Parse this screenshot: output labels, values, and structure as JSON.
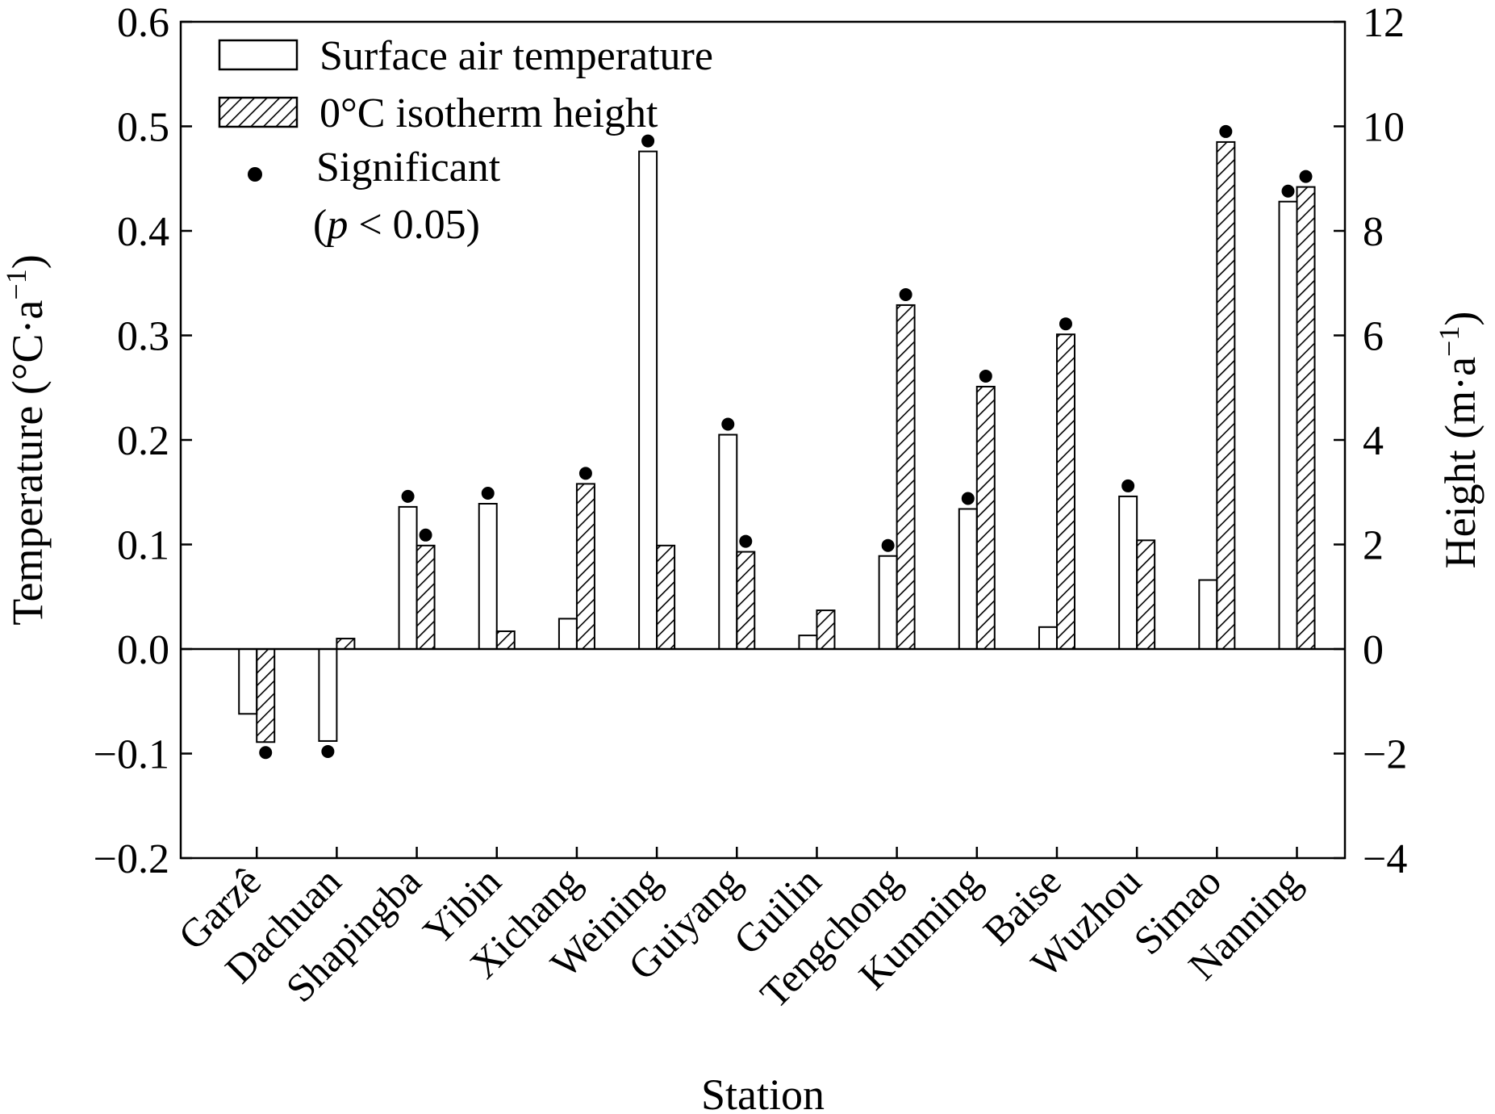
{
  "chart_data": {
    "type": "bar",
    "xlabel": "Station",
    "ylabel_left": "Temperature (°C·a",
    "ylabel_left_sup": "−1",
    "ylabel_left_close": ")",
    "ylabel_right": "Height (m·a",
    "ylabel_right_sup": "−1",
    "ylabel_right_close": ")",
    "ylim_left": [
      -0.2,
      0.6
    ],
    "ylim_right": [
      -4,
      12
    ],
    "yticks_left": [
      "−0.2",
      "−0.1",
      "0.0",
      "0.1",
      "0.2",
      "0.3",
      "0.4",
      "0.5",
      "0.6"
    ],
    "yticks_right": [
      "−4",
      "−2",
      "0",
      "2",
      "4",
      "6",
      "8",
      "10",
      "12"
    ],
    "categories": [
      "Garzê",
      "Dachuan",
      "Shapingba",
      "Yibin",
      "Xichang",
      "Weining",
      "Guiyang",
      "Guilin",
      "Tengchong",
      "Kunming",
      "Baise",
      "Wuzhou",
      "Simao",
      "Nanning"
    ],
    "series": [
      {
        "name": "Surface air temperature",
        "axis": "left",
        "fill": "plain",
        "values": [
          -0.062,
          -0.088,
          0.136,
          0.139,
          0.029,
          0.476,
          0.205,
          0.013,
          0.089,
          0.134,
          0.021,
          0.146,
          0.066,
          0.428
        ],
        "significant": [
          false,
          true,
          true,
          true,
          false,
          true,
          true,
          false,
          true,
          true,
          false,
          true,
          false,
          true
        ]
      },
      {
        "name": "0°C isotherm height",
        "axis": "right",
        "fill": "hatched",
        "values": [
          -1.78,
          0.2,
          1.98,
          0.34,
          3.16,
          1.98,
          1.86,
          0.74,
          6.58,
          5.02,
          6.02,
          2.08,
          9.7,
          8.84
        ],
        "significant": [
          true,
          false,
          true,
          false,
          true,
          false,
          true,
          false,
          true,
          true,
          true,
          false,
          true,
          true
        ]
      }
    ],
    "legend": {
      "position": "top-left",
      "significant_label": "Significant",
      "p_open": "(",
      "p_italic": "p",
      "p_rest": " < 0.05)"
    },
    "grid": false
  }
}
